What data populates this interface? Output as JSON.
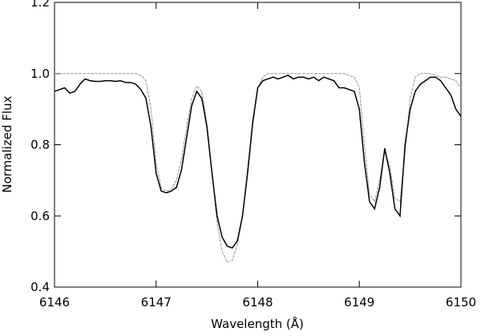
{
  "chart_data": {
    "type": "line",
    "xlabel": "Wavelength (Å)",
    "ylabel": "Normalized Flux",
    "xlim": [
      6146,
      6150
    ],
    "ylim": [
      0.4,
      1.2
    ],
    "xticks": [
      6146,
      6147,
      6148,
      6149,
      6150
    ],
    "yticks": [
      0.4,
      0.6,
      0.8,
      {
        "value": 1.0,
        "label": "1.0"
      },
      {
        "value": 1.2,
        "label": "1.2"
      }
    ],
    "x": [
      6146,
      6146.05,
      6146.1,
      6146.15,
      6146.2,
      6146.25,
      6146.3,
      6146.35,
      6146.4,
      6146.45,
      6146.5,
      6146.55,
      6146.6,
      6146.65,
      6146.7,
      6146.75,
      6146.8,
      6146.85,
      6146.9,
      6146.95,
      6147,
      6147.05,
      6147.1,
      6147.15,
      6147.2,
      6147.25,
      6147.3,
      6147.35,
      6147.4,
      6147.45,
      6147.5,
      6147.55,
      6147.6,
      6147.65,
      6147.7,
      6147.75,
      6147.8,
      6147.85,
      6147.9,
      6147.95,
      6148,
      6148.05,
      6148.1,
      6148.15,
      6148.2,
      6148.25,
      6148.3,
      6148.35,
      6148.4,
      6148.45,
      6148.5,
      6148.55,
      6148.6,
      6148.65,
      6148.7,
      6148.75,
      6148.8,
      6148.85,
      6148.9,
      6148.95,
      6149,
      6149.05,
      6149.1,
      6149.15,
      6149.2,
      6149.25,
      6149.3,
      6149.35,
      6149.4,
      6149.45,
      6149.5,
      6149.55,
      6149.6,
      6149.65,
      6149.7,
      6149.75,
      6149.8,
      6149.85,
      6149.9,
      6149.95,
      6150
    ],
    "series": [
      {
        "color": "#999999",
        "dashed": true,
        "values": [
          1,
          1,
          1,
          1,
          1,
          1,
          1,
          1,
          1,
          1,
          1,
          1,
          1,
          1,
          1,
          1,
          1,
          0.995,
          0.98,
          0.9,
          0.75,
          0.68,
          0.67,
          0.675,
          0.7,
          0.76,
          0.85,
          0.93,
          0.965,
          0.95,
          0.86,
          0.72,
          0.58,
          0.5,
          0.47,
          0.475,
          0.52,
          0.6,
          0.73,
          0.87,
          0.96,
          0.99,
          1,
          1,
          1,
          1,
          1,
          1,
          1,
          1,
          1,
          1,
          1,
          1,
          1,
          1,
          1,
          1,
          0.995,
          0.99,
          0.96,
          0.8,
          0.66,
          0.64,
          0.7,
          0.78,
          0.74,
          0.65,
          0.64,
          0.78,
          0.93,
          0.99,
          1,
          1,
          1,
          0.995,
          0.99,
          0.99,
          0.985,
          0.98,
          0.96
        ]
      },
      {
        "color": "#000000",
        "dashed": false,
        "values": [
          0.95,
          0.955,
          0.96,
          0.945,
          0.95,
          0.97,
          0.985,
          0.98,
          0.978,
          0.978,
          0.98,
          0.98,
          0.978,
          0.98,
          0.975,
          0.975,
          0.97,
          0.955,
          0.93,
          0.85,
          0.72,
          0.67,
          0.665,
          0.67,
          0.68,
          0.73,
          0.82,
          0.91,
          0.95,
          0.93,
          0.85,
          0.72,
          0.6,
          0.54,
          0.515,
          0.51,
          0.53,
          0.6,
          0.72,
          0.86,
          0.96,
          0.98,
          0.985,
          0.99,
          0.985,
          0.99,
          0.995,
          0.985,
          0.99,
          0.99,
          0.985,
          0.99,
          0.98,
          0.99,
          0.985,
          0.98,
          0.96,
          0.96,
          0.955,
          0.95,
          0.9,
          0.75,
          0.64,
          0.62,
          0.68,
          0.79,
          0.72,
          0.62,
          0.6,
          0.8,
          0.9,
          0.95,
          0.97,
          0.98,
          0.99,
          0.99,
          0.98,
          0.96,
          0.94,
          0.9,
          0.88
        ]
      }
    ]
  }
}
